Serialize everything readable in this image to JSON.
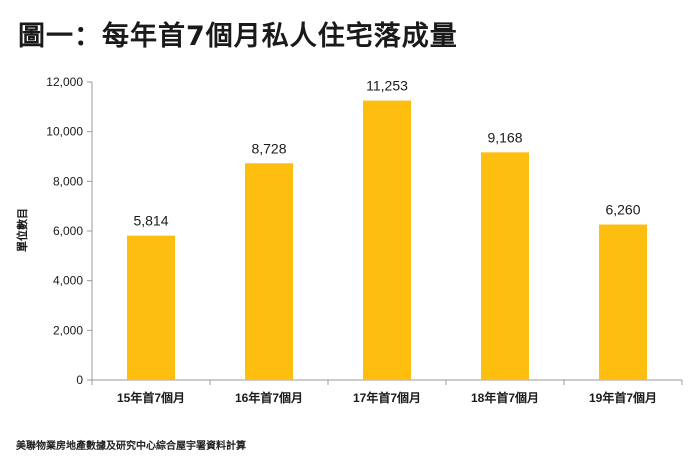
{
  "title": "圖一：每年首7個月私人住宅落成量",
  "source": "美聯物業房地產數據及研究中心綜合屋宇署資料計算",
  "colors": {
    "bar": "#FDBE10",
    "axis": "#9a9a9a",
    "text": "#1a1a1a"
  },
  "chart_data": {
    "type": "bar",
    "title": "圖一：每年首7個月私人住宅落成量",
    "xlabel": "",
    "ylabel": "單位數目",
    "ylim": [
      0,
      12000
    ],
    "ytick_values": [
      0,
      2000,
      4000,
      6000,
      8000,
      10000,
      12000
    ],
    "ytick_labels": [
      "0",
      "2,000",
      "4,000",
      "6,000",
      "8,000",
      "10,000",
      "12,000"
    ],
    "categories": [
      "15年首7個月",
      "16年首7個月",
      "17年首7個月",
      "18年首7個月",
      "19年首7個月"
    ],
    "values": [
      5814,
      8728,
      11253,
      9168,
      6260
    ],
    "data_labels": [
      "5,814",
      "8,728",
      "11,253",
      "9,168",
      "6,260"
    ],
    "grid": false,
    "legend": "none"
  }
}
